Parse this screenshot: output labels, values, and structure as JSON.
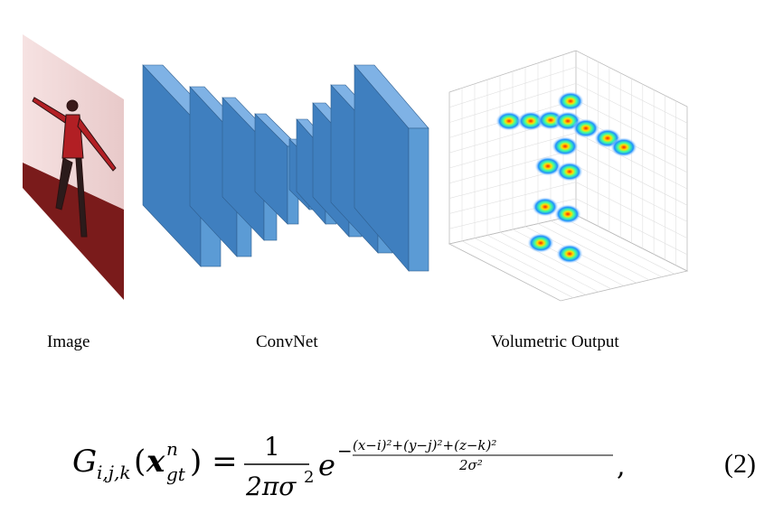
{
  "captions": {
    "image": "Image",
    "convnet": "ConvNet",
    "volumetric": "Volumetric Output"
  },
  "equation": {
    "lhs_symbol": "G",
    "lhs_subscript": "i,j,k",
    "vector": "x",
    "vector_superscript": "n",
    "vector_subscript": "gt",
    "fraction_numerator": "1",
    "fraction_denominator": "2πσ",
    "exponent_base": "e",
    "exponent_numerator": "(x−i)²+(y−j)²+(z−k)²",
    "exponent_denominator": "2σ²",
    "number": "(2)"
  },
  "colors": {
    "conv_front": "#5b9bd5",
    "conv_side": "#3f7fbf",
    "conv_top": "#7fb2e5",
    "floor": "#7a1b1b",
    "wall": "#f2e7e7",
    "person": "#b21f24"
  }
}
